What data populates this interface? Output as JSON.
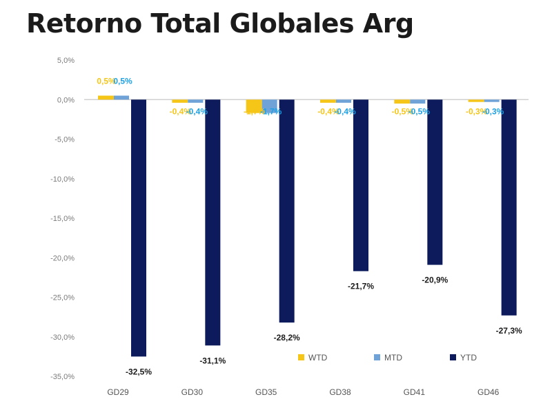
{
  "chart_data": {
    "type": "bar",
    "title": "Retorno Total Globales Arg",
    "categories": [
      "GD29",
      "GD30",
      "GD35",
      "GD38",
      "GD41",
      "GD46"
    ],
    "series": [
      {
        "name": "WTD",
        "values": [
          0.5,
          -0.4,
          -1.7,
          -0.4,
          -0.5,
          -0.3
        ],
        "labels": [
          "0,5%",
          "-0,4%",
          "-1,7%",
          "-0,4%",
          "-0,5%",
          "-0,3%"
        ],
        "color": "#F5C518",
        "label_color": "#F5C518"
      },
      {
        "name": "MTD",
        "values": [
          0.5,
          -0.4,
          -1.7,
          -0.4,
          -0.5,
          -0.3
        ],
        "labels": [
          "0,5%",
          "-0,4%",
          "-1,7%",
          "-0,4%",
          "-0,5%",
          "-0,3%"
        ],
        "color": "#6FA3D8",
        "label_color": "#1DA1E6"
      },
      {
        "name": "YTD",
        "values": [
          -32.5,
          -31.1,
          -28.2,
          -21.7,
          -20.9,
          -27.3
        ],
        "labels": [
          "-32,5%",
          "-31,1%",
          "-28,2%",
          "-21,7%",
          "-20,9%",
          "-27,3%"
        ],
        "color": "#0D1B5C",
        "label_color": "#1b1b1b"
      }
    ],
    "ylim": [
      -35,
      5
    ],
    "yticks": [
      5,
      0,
      -5,
      -10,
      -15,
      -20,
      -25,
      -30,
      -35
    ],
    "ytick_labels": [
      "5,0%",
      "0,0%",
      "-5,0%",
      "-10,0%",
      "-15,0%",
      "-20,0%",
      "-25,0%",
      "-30,0%",
      "-35,0%"
    ],
    "xlabel": "",
    "ylabel": "",
    "grid": false,
    "legend_position": "bottom-right"
  }
}
